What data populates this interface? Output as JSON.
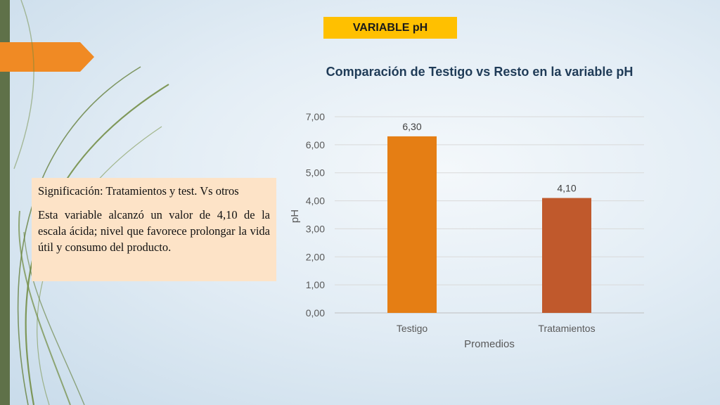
{
  "badge": "VARIABLE pH",
  "info": {
    "line1": "Significación: Tratamientos y test. Vs otros",
    "line2": "Esta variable alcanzó un valor de 4,10 de la escala ácida; nivel que favorece prolongar la vida útil y consumo del producto."
  },
  "chart_data": {
    "type": "bar",
    "title": "Comparación  de Testigo vs Resto en la variable pH",
    "xlabel": "Promedios",
    "ylabel": "pH",
    "categories": [
      "Testigo",
      "Tratamientos"
    ],
    "values": [
      6.3,
      4.1
    ],
    "data_labels": [
      "6,30",
      "4,10"
    ],
    "bar_colors": [
      "#e57e14",
      "#c0592c"
    ],
    "ylim": [
      0,
      7
    ],
    "yticks": [
      0,
      1,
      2,
      3,
      4,
      5,
      6,
      7
    ],
    "ytick_labels": [
      "0,00",
      "1,00",
      "2,00",
      "3,00",
      "4,00",
      "5,00",
      "6,00",
      "7,00"
    ],
    "grid": true,
    "legend": "none"
  }
}
